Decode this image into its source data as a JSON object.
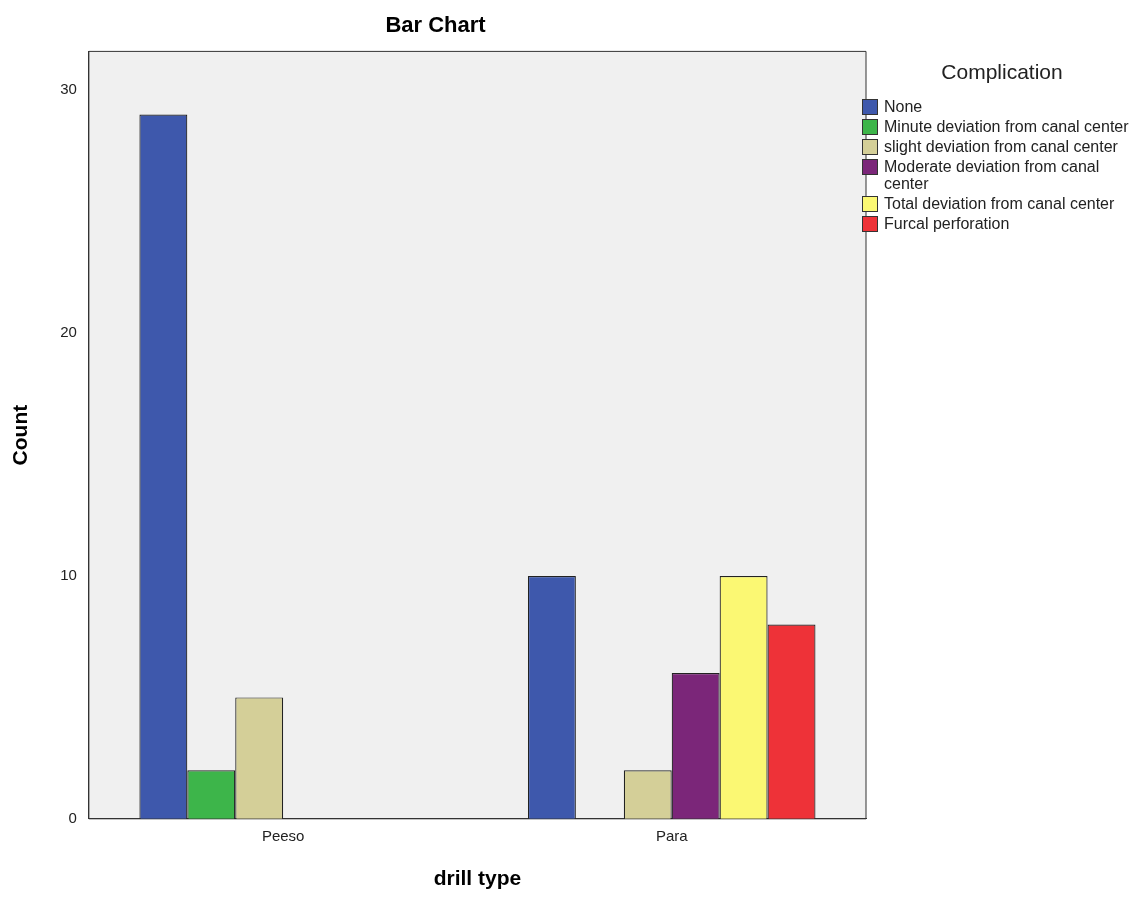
{
  "chart_data": {
    "type": "bar",
    "title": "Bar Chart",
    "xlabel": "drill type",
    "ylabel": "Count",
    "categories": [
      "Peeso",
      "Para"
    ],
    "series": [
      {
        "name": "None",
        "color": "#3e58ac",
        "values": [
          29,
          10
        ]
      },
      {
        "name": "Minute deviation from canal center",
        "color": "#3db54a",
        "values": [
          2,
          null
        ]
      },
      {
        "name": "slight deviation from canal center",
        "color": "#d4cf98",
        "values": [
          5,
          2
        ]
      },
      {
        "name": "Moderate deviation from canal center",
        "color": "#7b2679",
        "values": [
          null,
          6
        ]
      },
      {
        "name": "Total deviation from canal center",
        "color": "#fbf873",
        "values": [
          null,
          10
        ]
      },
      {
        "name": "Furcal perforation",
        "color": "#ee3238",
        "values": [
          null,
          8
        ]
      }
    ],
    "legend_title": "Complication",
    "legend": "right",
    "ylim": [
      0,
      31.6
    ],
    "yticks": [
      0,
      10,
      20,
      30
    ],
    "grid": false
  }
}
